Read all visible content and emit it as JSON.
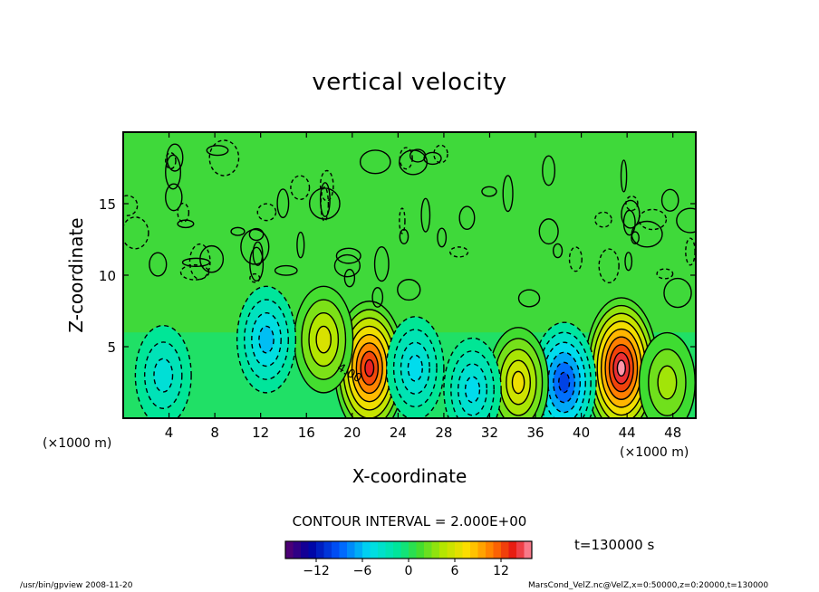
{
  "chart_data": {
    "type": "heatmap",
    "title": "vertical velocity",
    "xlabel": "X-coordinate",
    "ylabel": "Z-coordinate",
    "x_unit_left": "(×1000 m)",
    "x_unit_right": "(×1000 m)",
    "x_ticks": [
      "4",
      "8",
      "12",
      "16",
      "20",
      "24",
      "28",
      "32",
      "36",
      "40",
      "44",
      "48"
    ],
    "x_tick_values": [
      4,
      8,
      12,
      16,
      20,
      24,
      28,
      32,
      36,
      40,
      44,
      48
    ],
    "y_ticks": [
      "5",
      "10",
      "15"
    ],
    "y_tick_values": [
      5,
      10,
      15
    ],
    "xlim": [
      0,
      50
    ],
    "ylim": [
      0,
      20
    ],
    "contour_interval_label": "CONTOUR INTERVAL = 2.000E+00",
    "contour_label": "4.00",
    "time_label": "t=130000 s",
    "colorbar": {
      "range": [
        -16,
        16
      ],
      "ticks": [
        "−12",
        "−6",
        "0",
        "6",
        "12"
      ],
      "tick_values": [
        -12,
        -6,
        0,
        6,
        12
      ]
    },
    "features": [
      {
        "x": 21.5,
        "z": 3.5,
        "value": 14
      },
      {
        "x": 43.5,
        "z": 3.5,
        "value": 16
      },
      {
        "x": 17.5,
        "z": 5.5,
        "value": 6
      },
      {
        "x": 38.5,
        "z": 2.5,
        "value": -10
      },
      {
        "x": 12.5,
        "z": 5.5,
        "value": -6
      },
      {
        "x": 25.5,
        "z": 3.5,
        "value": -5
      },
      {
        "x": 34.5,
        "z": 2.5,
        "value": 7
      },
      {
        "x": 30.5,
        "z": 2.0,
        "value": -5
      },
      {
        "x": 47.5,
        "z": 2.5,
        "value": 4
      },
      {
        "x": 3.5,
        "z": 3.0,
        "value": -4
      }
    ]
  },
  "footer": {
    "left": "/usr/bin/gpview   2008-11-20",
    "right": "MarsCond_VelZ.nc@VelZ,x=0:50000,z=0:20000,t=130000"
  },
  "colors": {
    "background": "#ffffff",
    "field_base": "#3fd93a",
    "contour": "#000000"
  }
}
